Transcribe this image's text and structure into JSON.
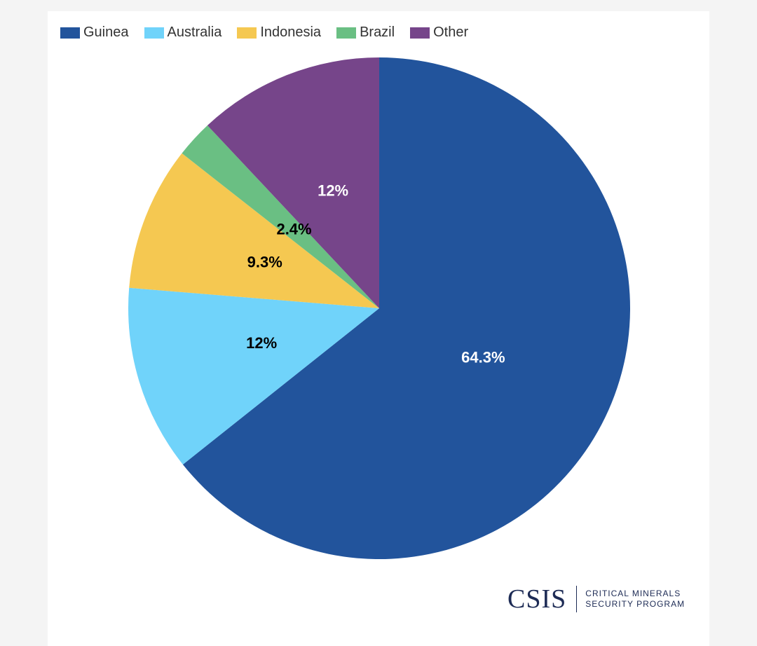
{
  "chart_data": {
    "type": "pie",
    "title": "",
    "legend_position": "top-left",
    "slices": [
      {
        "name": "Guinea",
        "value": 64.3,
        "label": "64.3%",
        "color": "#22549c",
        "label_color": "#ffffff"
      },
      {
        "name": "Australia",
        "value": 12,
        "label": "12%",
        "color": "#70d3fa",
        "label_color": "#000000"
      },
      {
        "name": "Indonesia",
        "value": 9.3,
        "label": "9.3%",
        "color": "#f5c851",
        "label_color": "#000000"
      },
      {
        "name": "Brazil",
        "value": 2.4,
        "label": "2.4%",
        "color": "#6abf83",
        "label_color": "#000000"
      },
      {
        "name": "Other",
        "value": 12,
        "label": "12%",
        "color": "#76458a",
        "label_color": "#ffffff"
      }
    ]
  },
  "branding": {
    "logo_text": "CSIS",
    "program_line1": "CRITICAL MINERALS",
    "program_line2": "SECURITY PROGRAM"
  }
}
